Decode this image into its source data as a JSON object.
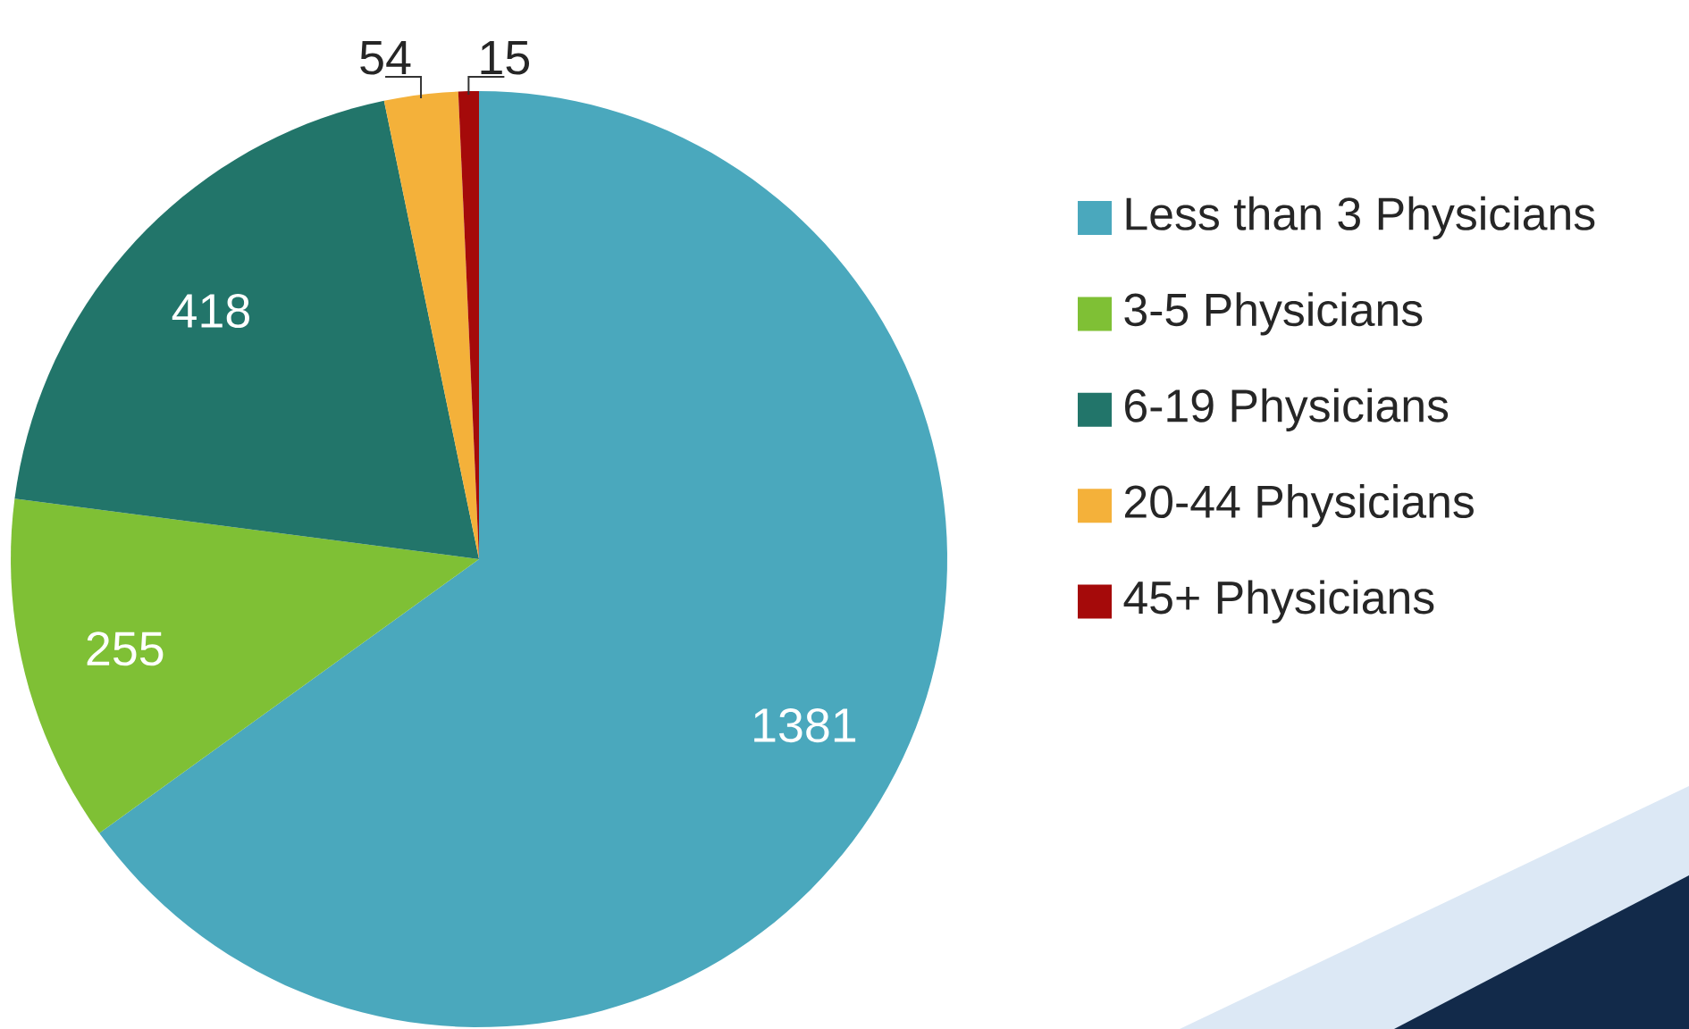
{
  "chart_data": {
    "type": "pie",
    "categories": [
      "Less than 3 Physicians",
      "3-5 Physicians",
      "6-19 Physicians",
      "20-44 Physicians",
      "45+ Physicians"
    ],
    "values": [
      1381,
      255,
      418,
      54,
      15
    ],
    "colors": [
      "#4aa8bd",
      "#7fc035",
      "#22756a",
      "#f4b13a",
      "#a50a0a"
    ],
    "data_labels": true,
    "legend": "right"
  }
}
